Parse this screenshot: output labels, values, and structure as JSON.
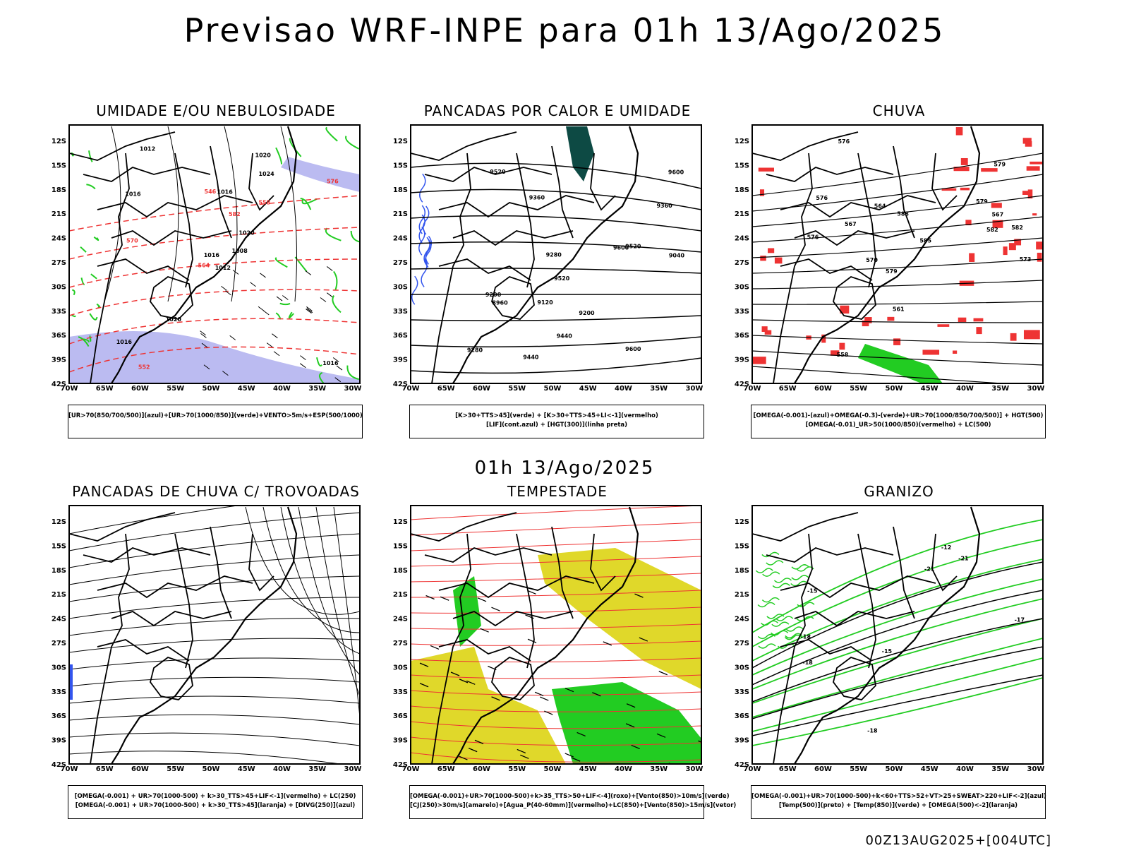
{
  "header": {
    "title": "Previsao WRF-INPE  para 01h 13/Ago/2025"
  },
  "mid_title": "01h 13/Ago/2025",
  "footer": "00Z13AUG2025+[004UTC]",
  "axes": {
    "lat_labels": [
      "12S",
      "15S",
      "18S",
      "21S",
      "24S",
      "27S",
      "30S",
      "33S",
      "36S",
      "39S",
      "42S"
    ],
    "lon_labels": [
      "70W",
      "65W",
      "60W",
      "55W",
      "50W",
      "45W",
      "40W",
      "35W",
      "30W"
    ]
  },
  "panels": [
    {
      "id": "umidade",
      "title": "UMIDADE E/OU NEBULOSIDADE",
      "legend": [
        "[UR>70(850/700/500)](azul)+[UR>70(1000/850)](verde)+VENTO>5m/s+ESP(500/1000)"
      ],
      "contour_labels": [
        "1012",
        "1016",
        "1016",
        "1016",
        "1020",
        "1020",
        "1020",
        "1016",
        "1024",
        "1008",
        "1012",
        "1016",
        "570",
        "576",
        "564",
        "558",
        "552",
        "546",
        "582"
      ]
    },
    {
      "id": "pancadas-calor",
      "title": "PANCADAS POR CALOR E UMIDADE",
      "legend": [
        "[K>30+TTS>45](verde) + [K>30+TTS>45+LI<-1](vermelho)",
        "[LIF](cont.azul) + [HGT(300)](linha preta)"
      ],
      "contour_labels": [
        "9600",
        "9600",
        "9520",
        "9520",
        "9440",
        "9360",
        "9280",
        "9200",
        "9120",
        "9040",
        "8960",
        "9520",
        "9440",
        "9360",
        "9280",
        "9600",
        "9200"
      ]
    },
    {
      "id": "chuva",
      "title": "CHUVA",
      "legend": [
        "[OMEGA(-0.001)-(azul)+OMEGA(-0.3)-(verde)+UR>70(1000/850/700/500)] + HGT(500)",
        "[OMEGA(-0.01)_UR>50(1000/850)(vermelho) + LC(500)"
      ],
      "contour_labels": [
        "582",
        "579",
        "576",
        "567",
        "564",
        "561",
        "558",
        "579",
        "576",
        "570",
        "567",
        "588",
        "585",
        "582",
        "579",
        "576",
        "573"
      ]
    },
    {
      "id": "trovoadas",
      "title": "PANCADAS DE CHUVA C/ TROVOADAS",
      "legend": [
        "[OMEGA(-0.001) + UR>70(1000-500) + k>30_TTS>45+LIF<-1](vermelho) + LC(250)",
        "[OMEGA(-0.001) + UR>70(1000-500) + k>30_TTS>45](laranja) + [DIVG(250)](azul)"
      ],
      "contour_labels": []
    },
    {
      "id": "tempestade",
      "title": "TEMPESTADE",
      "legend": [
        "[OMEGA(-0.001)+UR>70(1000-500)+k>35_TTS>50+LIF<-4](roxo)+[Vento(850)>10m/s](verde)",
        "[CJ(250)>30m/s](amarelo)+[Agua_P(40-60mm)](vermelho)+LC(850)+[Vento(850)>15m/s](vetor)"
      ],
      "contour_labels": []
    },
    {
      "id": "granizo",
      "title": "GRANIZO",
      "legend": [
        "[OMEGA(-0.001)+UR>70(1000-500)+k<60+TTS>52+VT>25+SWEAT>220+LIF<-2](azul)",
        "[Temp(500)](preto) + [Temp(850)](verde) + [OMEGA(500)<-2](laranja)"
      ],
      "contour_labels": [
        "-12",
        "-15",
        "-15",
        "-18",
        "-18",
        "-21",
        "-21",
        "-17",
        "-18"
      ]
    }
  ],
  "colors": {
    "green": "#22cc22",
    "red": "#ee3333",
    "blue": "#3355ee",
    "lilac": "#aaaaee",
    "yellow": "#e0d82a",
    "dark-teal": "#0d4a44",
    "orange": "#ee7722"
  }
}
